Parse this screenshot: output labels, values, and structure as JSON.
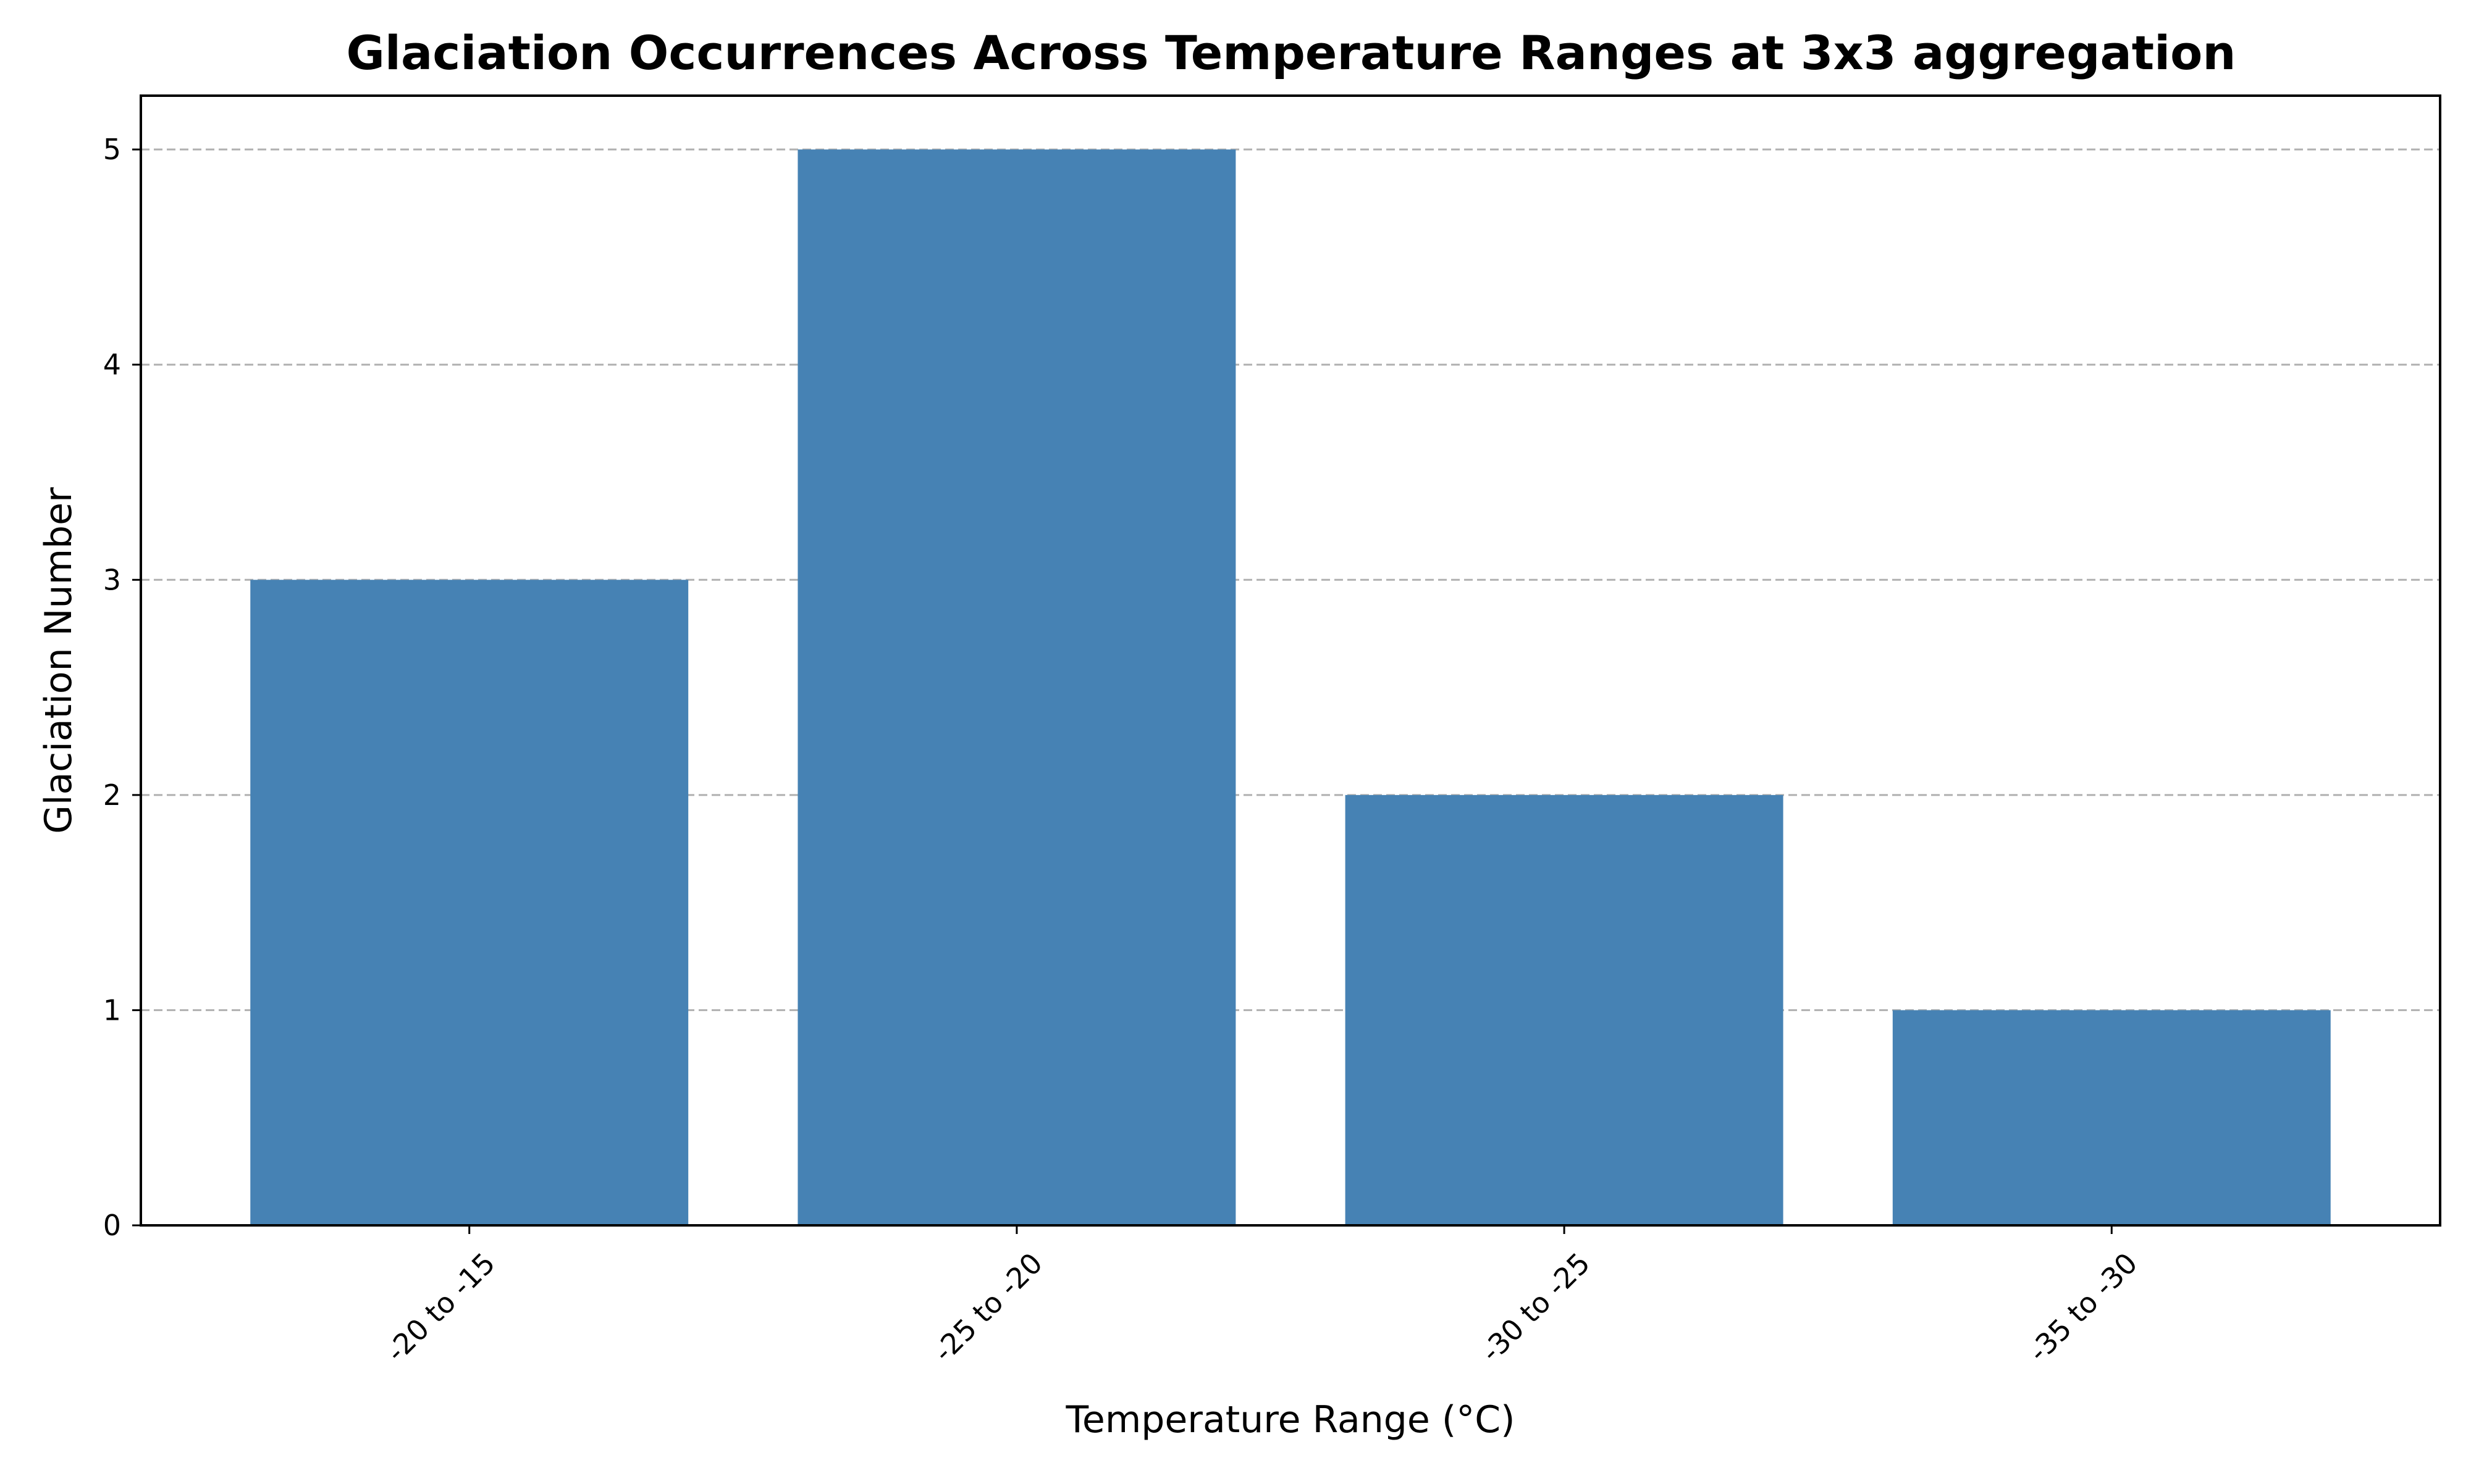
{
  "chart_data": {
    "type": "bar",
    "title": "Glaciation Occurrences Across Temperature Ranges at 3x3 aggregation",
    "xlabel": "Temperature Range (°C)",
    "ylabel": "Glaciation Number",
    "categories": [
      "-20 to -15",
      "-25 to -20",
      "-30 to -25",
      "-35 to -30"
    ],
    "values": [
      3,
      5,
      2,
      1
    ],
    "ylim": [
      0,
      5.25
    ],
    "yticks": [
      0,
      1,
      2,
      3,
      4,
      5
    ],
    "grid": "y-dashed",
    "bar_color": "#4682b4",
    "grid_color": "#b0b0b0",
    "x_tick_rotation": 45
  }
}
